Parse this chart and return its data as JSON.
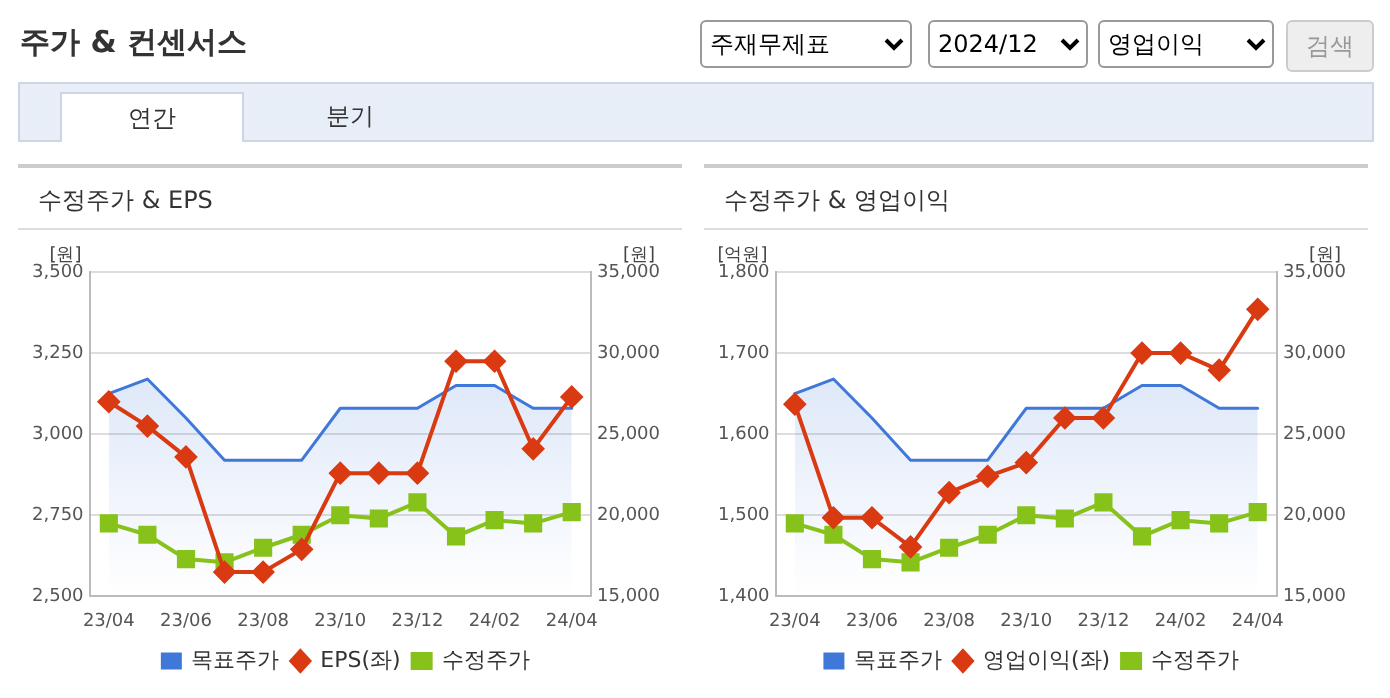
{
  "chart_data": [
    {
      "type": "line",
      "title": "수정주가 & EPS",
      "ylabel": "[원]",
      "y2label": "[원]",
      "annotations": [
        "주가 & 컨센서스",
        "주재무제표",
        "2024/12",
        "영업이익",
        "검색",
        "연간",
        "분기"
      ],
      "categories": [
        "23/04",
        null,
        "23/06",
        null,
        "23/08",
        null,
        "23/10",
        null,
        "23/12",
        null,
        "24/02",
        null,
        "24/04"
      ],
      "series": [
        {
          "name": "목표주가",
          "type": "area",
          "color": "#3f78d8",
          "axis": "y2",
          "marker": "none",
          "values": [
            27500,
            28400,
            26000,
            23400,
            23400,
            23400,
            26600,
            26600,
            26600,
            28000,
            28000,
            26600,
            26600
          ]
        },
        {
          "name": "EPS(좌)",
          "color": "#d93a12",
          "marker": "diamond",
          "values": [
            3100,
            3025,
            2930,
            2575,
            2575,
            2645,
            2880,
            2880,
            2880,
            3225,
            3225,
            2955,
            3115
          ]
        },
        {
          "name": "수정주가",
          "color": "#86c21a",
          "axis": "y2",
          "marker": "square",
          "values": [
            19500,
            18800,
            17300,
            17100,
            18000,
            18800,
            20000,
            19800,
            20800,
            18700,
            19700,
            19500,
            20200
          ]
        }
      ],
      "ylim": [
        2500,
        3500
      ],
      "yticks": [
        {
          "value": 2500,
          "label": "2,500"
        },
        {
          "value": 2750,
          "label": "2,750"
        },
        {
          "value": 3000,
          "label": "3,000"
        },
        {
          "value": 3250,
          "label": "3,250"
        },
        {
          "value": 3500,
          "label": "3,500"
        }
      ],
      "y2lim": [
        15000,
        35000
      ],
      "y2ticks": [
        {
          "value": 15000,
          "label": "15,000"
        },
        {
          "value": 20000,
          "label": "20,000"
        },
        {
          "value": 25000,
          "label": "25,000"
        },
        {
          "value": 30000,
          "label": "30,000"
        },
        {
          "value": 35000,
          "label": "35,000"
        }
      ],
      "grid": "y",
      "legend": "bottom"
    },
    {
      "type": "line",
      "title": "수정주가 & 영업이익",
      "ylabel": "[억원]",
      "y2label": "[원]",
      "categories": [
        "23/04",
        null,
        "23/06",
        null,
        "23/08",
        null,
        "23/10",
        null,
        "23/12",
        null,
        "24/02",
        null,
        "24/04"
      ],
      "series": [
        {
          "name": "목표주가",
          "type": "area",
          "color": "#3f78d8",
          "axis": "y2",
          "marker": "none",
          "values": [
            27500,
            28400,
            26000,
            23400,
            23400,
            23400,
            26600,
            26600,
            26600,
            28000,
            28000,
            26600,
            26600
          ]
        },
        {
          "name": "영업이익(좌)",
          "color": "#d93a12",
          "marker": "diamond",
          "values": [
            1637,
            1497,
            1497,
            1461,
            1528,
            1548,
            1565,
            1620,
            1620,
            1700,
            1700,
            1679,
            1754
          ]
        },
        {
          "name": "수정주가",
          "color": "#86c21a",
          "axis": "y2",
          "marker": "square",
          "values": [
            19500,
            18800,
            17300,
            17100,
            18000,
            18800,
            20000,
            19800,
            20800,
            18700,
            19700,
            19500,
            20200
          ]
        }
      ],
      "ylim": [
        1400,
        1800
      ],
      "yticks": [
        {
          "value": 1400,
          "label": "1,400"
        },
        {
          "value": 1500,
          "label": "1,500"
        },
        {
          "value": 1600,
          "label": "1,600"
        },
        {
          "value": 1700,
          "label": "1,700"
        },
        {
          "value": 1800,
          "label": "1,800"
        }
      ],
      "y2lim": [
        15000,
        35000
      ],
      "y2ticks": [
        {
          "value": 15000,
          "label": "15,000"
        },
        {
          "value": 20000,
          "label": "20,000"
        },
        {
          "value": 25000,
          "label": "25,000"
        },
        {
          "value": 30000,
          "label": "30,000"
        },
        {
          "value": 35000,
          "label": "35,000"
        }
      ],
      "grid": "y",
      "legend": "bottom"
    }
  ]
}
